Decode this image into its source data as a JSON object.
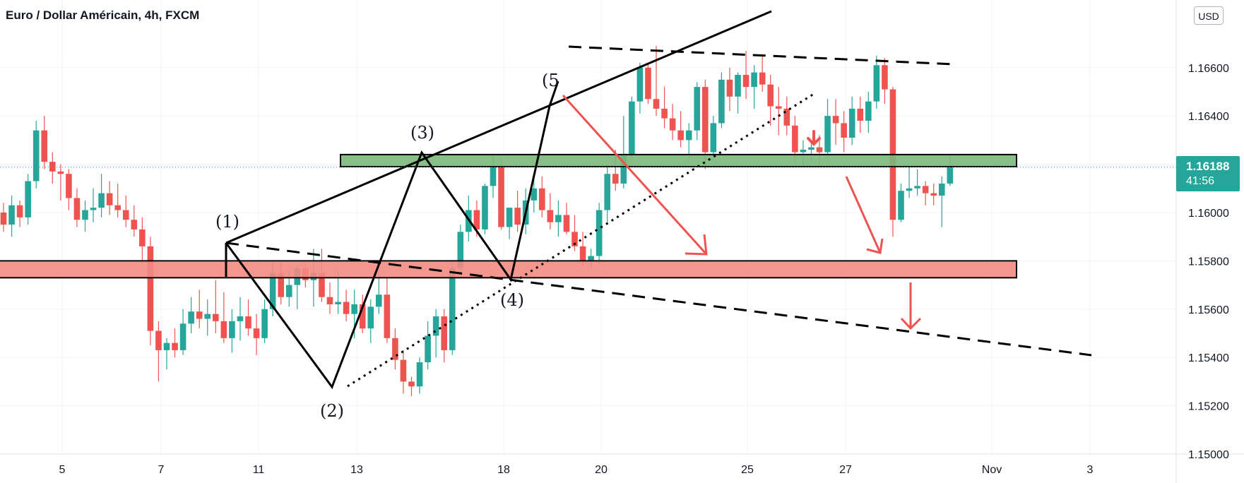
{
  "header": {
    "title": "Euro / Dollar Américain, 4h, FXCM",
    "currency_button": "USD"
  },
  "price_tag": {
    "price": "1.16188",
    "countdown": "41:56"
  },
  "colors": {
    "up": "#26a69a",
    "down": "#ef5350",
    "support_zone": "#f28b82",
    "resistance_zone": "#7bb87b",
    "annotation_arrow": "#ef5350",
    "line": "#000000"
  },
  "chart_data": {
    "type": "candlestick",
    "symbol": "EURUSD",
    "timeframe": "4h",
    "ylim": [
      1.15,
      1.1688
    ],
    "y_ticks": [
      "1.15000",
      "1.15200",
      "1.15400",
      "1.15600",
      "1.15800",
      "1.16000",
      "1.16200",
      "1.16400",
      "1.16600"
    ],
    "x_ticks": [
      "5",
      "7",
      "11",
      "13",
      "18",
      "20",
      "25",
      "27",
      "Nov",
      "3"
    ],
    "x_tick_pos": [
      0,
      4,
      8,
      12,
      16,
      20,
      24,
      28,
      32,
      36
    ],
    "last_price": 1.16188,
    "candles": [
      [
        1.16,
        1.1604,
        1.1592,
        1.1595
      ],
      [
        1.1595,
        1.1607,
        1.159,
        1.1603
      ],
      [
        1.1603,
        1.1605,
        1.1594,
        1.1598
      ],
      [
        1.1598,
        1.1616,
        1.1595,
        1.1613
      ],
      [
        1.1613,
        1.1638,
        1.161,
        1.1634
      ],
      [
        1.1634,
        1.164,
        1.1618,
        1.1621
      ],
      [
        1.1621,
        1.1625,
        1.1612,
        1.1617
      ],
      [
        1.1617,
        1.162,
        1.1605,
        1.1616
      ],
      [
        1.1616,
        1.1618,
        1.1601,
        1.1606
      ],
      [
        1.1606,
        1.161,
        1.1594,
        1.1597
      ],
      [
        1.1597,
        1.1605,
        1.1592,
        1.1601
      ],
      [
        1.1601,
        1.161,
        1.1596,
        1.1602
      ],
      [
        1.1602,
        1.1616,
        1.1598,
        1.1608
      ],
      [
        1.1608,
        1.1613,
        1.1599,
        1.1603
      ],
      [
        1.1603,
        1.1612,
        1.1598,
        1.1601
      ],
      [
        1.1601,
        1.1607,
        1.1594,
        1.1597
      ],
      [
        1.1597,
        1.1603,
        1.159,
        1.1593
      ],
      [
        1.1593,
        1.1598,
        1.1579,
        1.1586
      ],
      [
        1.1586,
        1.159,
        1.1545,
        1.1551
      ],
      [
        1.1551,
        1.1555,
        1.153,
        1.1543
      ],
      [
        1.1543,
        1.1548,
        1.1535,
        1.1546
      ],
      [
        1.1546,
        1.1552,
        1.154,
        1.1543
      ],
      [
        1.1543,
        1.156,
        1.1541,
        1.1554
      ],
      [
        1.1554,
        1.1565,
        1.155,
        1.1559
      ],
      [
        1.1559,
        1.1568,
        1.1552,
        1.1556
      ],
      [
        1.1556,
        1.1564,
        1.1549,
        1.1558
      ],
      [
        1.1558,
        1.1572,
        1.155,
        1.1555
      ],
      [
        1.1555,
        1.1567,
        1.1546,
        1.1548
      ],
      [
        1.1548,
        1.156,
        1.1542,
        1.1555
      ],
      [
        1.1555,
        1.1565,
        1.1547,
        1.1557
      ],
      [
        1.1557,
        1.1564,
        1.1549,
        1.1552
      ],
      [
        1.1552,
        1.1558,
        1.1541,
        1.1548
      ],
      [
        1.1548,
        1.1564,
        1.1546,
        1.156
      ],
      [
        1.156,
        1.1579,
        1.1557,
        1.1575
      ],
      [
        1.1575,
        1.1579,
        1.1562,
        1.1565
      ],
      [
        1.1565,
        1.1576,
        1.1561,
        1.157
      ],
      [
        1.157,
        1.1578,
        1.156,
        1.1577
      ],
      [
        1.1577,
        1.158,
        1.1569,
        1.1572
      ],
      [
        1.1572,
        1.1585,
        1.1561,
        1.1575
      ],
      [
        1.1575,
        1.1585,
        1.1563,
        1.1565
      ],
      [
        1.1565,
        1.1571,
        1.1558,
        1.1562
      ],
      [
        1.1562,
        1.1576,
        1.1558,
        1.1563
      ],
      [
        1.1563,
        1.1568,
        1.1555,
        1.1558
      ],
      [
        1.1558,
        1.1568,
        1.1548,
        1.1562
      ],
      [
        1.1562,
        1.1566,
        1.155,
        1.1552
      ],
      [
        1.1552,
        1.1564,
        1.1546,
        1.1561
      ],
      [
        1.1561,
        1.1575,
        1.1558,
        1.1566
      ],
      [
        1.1566,
        1.1573,
        1.1546,
        1.1548
      ],
      [
        1.1548,
        1.1552,
        1.1535,
        1.1539
      ],
      [
        1.1539,
        1.1543,
        1.1525,
        1.153
      ],
      [
        1.153,
        1.1532,
        1.1524,
        1.1528
      ],
      [
        1.1528,
        1.154,
        1.1525,
        1.1538
      ],
      [
        1.1538,
        1.1555,
        1.1535,
        1.1549
      ],
      [
        1.1549,
        1.156,
        1.154,
        1.1557
      ],
      [
        1.1557,
        1.156,
        1.1538,
        1.1543
      ],
      [
        1.1543,
        1.158,
        1.1541,
        1.1577
      ],
      [
        1.1577,
        1.1595,
        1.1574,
        1.1592
      ],
      [
        1.1592,
        1.1607,
        1.1588,
        1.1601
      ],
      [
        1.1601,
        1.1605,
        1.159,
        1.1593
      ],
      [
        1.1593,
        1.1612,
        1.1591,
        1.1611
      ],
      [
        1.1611,
        1.1624,
        1.1606,
        1.1619
      ],
      [
        1.1619,
        1.1622,
        1.1593,
        1.1594
      ],
      [
        1.1594,
        1.1602,
        1.1589,
        1.1602
      ],
      [
        1.1602,
        1.1609,
        1.1592,
        1.1595
      ],
      [
        1.1595,
        1.161,
        1.1591,
        1.1605
      ],
      [
        1.1605,
        1.1616,
        1.16,
        1.161
      ],
      [
        1.161,
        1.1615,
        1.1598,
        1.1601
      ],
      [
        1.1601,
        1.1608,
        1.1593,
        1.1596
      ],
      [
        1.1596,
        1.1605,
        1.159,
        1.1599
      ],
      [
        1.1599,
        1.1604,
        1.1591,
        1.1592
      ],
      [
        1.1592,
        1.1599,
        1.1584,
        1.1586
      ],
      [
        1.1586,
        1.1592,
        1.1578,
        1.158
      ],
      [
        1.158,
        1.1585,
        1.1577,
        1.1582
      ],
      [
        1.1582,
        1.1604,
        1.1579,
        1.1601
      ],
      [
        1.1601,
        1.162,
        1.1596,
        1.1616
      ],
      [
        1.1616,
        1.1626,
        1.1609,
        1.1612
      ],
      [
        1.1612,
        1.164,
        1.161,
        1.1624
      ],
      [
        1.1624,
        1.1648,
        1.1622,
        1.1646
      ],
      [
        1.1646,
        1.1662,
        1.1641,
        1.166
      ],
      [
        1.166,
        1.1662,
        1.1645,
        1.1647
      ],
      [
        1.1647,
        1.1669,
        1.164,
        1.1643
      ],
      [
        1.1643,
        1.1652,
        1.1635,
        1.1639
      ],
      [
        1.1639,
        1.1645,
        1.163,
        1.1634
      ],
      [
        1.1634,
        1.1642,
        1.1627,
        1.163
      ],
      [
        1.163,
        1.1637,
        1.1622,
        1.1634
      ],
      [
        1.1634,
        1.1654,
        1.163,
        1.1652
      ],
      [
        1.1652,
        1.1655,
        1.1618,
        1.1625
      ],
      [
        1.1625,
        1.164,
        1.1622,
        1.1637
      ],
      [
        1.1637,
        1.1658,
        1.1635,
        1.1655
      ],
      [
        1.1655,
        1.166,
        1.1642,
        1.1648
      ],
      [
        1.1648,
        1.1658,
        1.1641,
        1.1657
      ],
      [
        1.1657,
        1.1667,
        1.1647,
        1.1652
      ],
      [
        1.1652,
        1.1661,
        1.1643,
        1.1658
      ],
      [
        1.1658,
        1.1665,
        1.165,
        1.1653
      ],
      [
        1.1653,
        1.1657,
        1.1636,
        1.1644
      ],
      [
        1.1644,
        1.1652,
        1.1632,
        1.1643
      ],
      [
        1.1643,
        1.1648,
        1.1632,
        1.1636
      ],
      [
        1.1636,
        1.164,
        1.1621,
        1.1625
      ],
      [
        1.1625,
        1.163,
        1.1619,
        1.1626
      ],
      [
        1.1626,
        1.1629,
        1.1621,
        1.1627
      ],
      [
        1.1627,
        1.1632,
        1.162,
        1.1625
      ],
      [
        1.1625,
        1.1647,
        1.1622,
        1.164
      ],
      [
        1.164,
        1.1647,
        1.1628,
        1.1637
      ],
      [
        1.1637,
        1.1642,
        1.1625,
        1.1631
      ],
      [
        1.1631,
        1.1648,
        1.1628,
        1.1643
      ],
      [
        1.1643,
        1.1648,
        1.1633,
        1.1638
      ],
      [
        1.1638,
        1.165,
        1.1633,
        1.1646
      ],
      [
        1.1646,
        1.1665,
        1.1643,
        1.1661
      ],
      [
        1.1661,
        1.1664,
        1.1645,
        1.1651
      ],
      [
        1.1651,
        1.1652,
        1.159,
        1.1597
      ],
      [
        1.1597,
        1.1612,
        1.1596,
        1.1609
      ],
      [
        1.1609,
        1.1619,
        1.1606,
        1.161
      ],
      [
        1.161,
        1.1618,
        1.1607,
        1.1611
      ],
      [
        1.1611,
        1.1613,
        1.1603,
        1.1608
      ],
      [
        1.1608,
        1.1612,
        1.1603,
        1.1607
      ],
      [
        1.1607,
        1.1615,
        1.1594,
        1.1612
      ],
      [
        1.1612,
        1.1624,
        1.1611,
        1.1619
      ]
    ],
    "zones": [
      {
        "name": "resistance",
        "from": 1.1619,
        "to": 1.1624
      },
      {
        "name": "support",
        "from": 1.1573,
        "to": 1.158
      }
    ],
    "wave_labels": [
      "(1)",
      "(2)",
      "(3)",
      "(4)",
      "(5"
    ]
  }
}
